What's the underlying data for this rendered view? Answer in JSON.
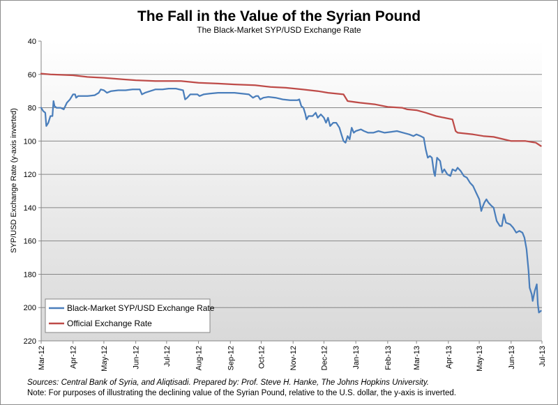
{
  "chart_data": {
    "type": "line",
    "title": "The Fall in the Value of the Syrian Pound",
    "subtitle": "The Black-Market SYP/USD Exchange Rate",
    "xlabel": "",
    "ylabel": "SYP/USD Exchange Rate (y-axis inverted)",
    "y_inverted": true,
    "ylim": [
      40,
      220
    ],
    "y_ticks": [
      40,
      60,
      80,
      100,
      120,
      140,
      160,
      180,
      200,
      220
    ],
    "x_range": [
      "2012-03-01",
      "2013-07-01"
    ],
    "x_tick_labels": [
      {
        "date": "2012-03-01",
        "label": "Mar-12"
      },
      {
        "date": "2012-04-01",
        "label": "Apr-12"
      },
      {
        "date": "2012-05-01",
        "label": "May-12"
      },
      {
        "date": "2012-06-01",
        "label": "Jun-12"
      },
      {
        "date": "2012-07-01",
        "label": "Jul-12"
      },
      {
        "date": "2012-08-01",
        "label": "Aug-12"
      },
      {
        "date": "2012-09-01",
        "label": "Sep-12"
      },
      {
        "date": "2012-10-01",
        "label": "Oct-12"
      },
      {
        "date": "2012-11-01",
        "label": "Nov-12"
      },
      {
        "date": "2012-12-01",
        "label": "Dec-12"
      },
      {
        "date": "2013-01-01",
        "label": "Jan-13"
      },
      {
        "date": "2013-02-01",
        "label": "Feb-13"
      },
      {
        "date": "2013-03-01",
        "label": "Mar-13"
      },
      {
        "date": "2013-04-01",
        "label": "Apr-13"
      },
      {
        "date": "2013-05-01",
        "label": "May-13"
      },
      {
        "date": "2013-06-01",
        "label": "Jun-13"
      },
      {
        "date": "2013-07-01",
        "label": "Jul-13"
      }
    ],
    "grid": "horizontal",
    "legend_placement": "bottom-left",
    "series": [
      {
        "name": "Black-Market SYP/USD Exchange Rate",
        "color": "#4a7ebb",
        "points": [
          [
            "2012-03-01",
            80
          ],
          [
            "2012-03-03",
            82
          ],
          [
            "2012-03-05",
            83
          ],
          [
            "2012-03-06",
            91
          ],
          [
            "2012-03-08",
            89
          ],
          [
            "2012-03-10",
            85
          ],
          [
            "2012-03-12",
            85
          ],
          [
            "2012-03-13",
            76
          ],
          [
            "2012-03-14",
            79
          ],
          [
            "2012-03-16",
            80
          ],
          [
            "2012-03-20",
            80
          ],
          [
            "2012-03-23",
            81
          ],
          [
            "2012-03-26",
            77
          ],
          [
            "2012-03-29",
            75
          ],
          [
            "2012-04-01",
            72
          ],
          [
            "2012-04-03",
            72
          ],
          [
            "2012-04-04",
            74
          ],
          [
            "2012-04-06",
            73
          ],
          [
            "2012-04-10",
            73
          ],
          [
            "2012-04-15",
            73
          ],
          [
            "2012-04-22",
            72.5
          ],
          [
            "2012-04-26",
            71
          ],
          [
            "2012-04-28",
            69
          ],
          [
            "2012-05-01",
            69.5
          ],
          [
            "2012-05-04",
            71
          ],
          [
            "2012-05-08",
            70
          ],
          [
            "2012-05-15",
            69.5
          ],
          [
            "2012-05-22",
            69.5
          ],
          [
            "2012-05-29",
            69
          ],
          [
            "2012-06-05",
            69
          ],
          [
            "2012-06-07",
            72
          ],
          [
            "2012-06-10",
            71
          ],
          [
            "2012-06-15",
            70
          ],
          [
            "2012-06-20",
            69
          ],
          [
            "2012-06-27",
            69
          ],
          [
            "2012-07-03",
            68.5
          ],
          [
            "2012-07-10",
            68.5
          ],
          [
            "2012-07-17",
            69.5
          ],
          [
            "2012-07-19",
            75
          ],
          [
            "2012-07-21",
            74
          ],
          [
            "2012-07-24",
            72
          ],
          [
            "2012-07-31",
            72
          ],
          [
            "2012-08-02",
            73
          ],
          [
            "2012-08-06",
            72
          ],
          [
            "2012-08-12",
            71.5
          ],
          [
            "2012-08-20",
            71
          ],
          [
            "2012-08-28",
            71
          ],
          [
            "2012-09-05",
            71
          ],
          [
            "2012-09-12",
            71.5
          ],
          [
            "2012-09-19",
            72
          ],
          [
            "2012-09-23",
            74
          ],
          [
            "2012-09-26",
            73
          ],
          [
            "2012-09-28",
            73
          ],
          [
            "2012-09-30",
            75
          ],
          [
            "2012-10-03",
            74
          ],
          [
            "2012-10-08",
            73.5
          ],
          [
            "2012-10-15",
            74
          ],
          [
            "2012-10-22",
            75
          ],
          [
            "2012-10-29",
            75.5
          ],
          [
            "2012-11-05",
            75.5
          ],
          [
            "2012-11-07",
            75
          ],
          [
            "2012-11-09",
            79
          ],
          [
            "2012-11-11",
            80
          ],
          [
            "2012-11-13",
            84
          ],
          [
            "2012-11-14",
            87
          ],
          [
            "2012-11-16",
            85
          ],
          [
            "2012-11-20",
            85
          ],
          [
            "2012-11-23",
            83
          ],
          [
            "2012-11-25",
            86
          ],
          [
            "2012-11-28",
            84
          ],
          [
            "2012-12-01",
            86
          ],
          [
            "2012-12-03",
            89
          ],
          [
            "2012-12-05",
            86
          ],
          [
            "2012-12-07",
            91
          ],
          [
            "2012-12-10",
            89
          ],
          [
            "2012-12-13",
            89
          ],
          [
            "2012-12-16",
            92
          ],
          [
            "2012-12-18",
            96
          ],
          [
            "2012-12-20",
            100
          ],
          [
            "2012-12-22",
            101
          ],
          [
            "2012-12-24",
            97
          ],
          [
            "2012-12-26",
            99
          ],
          [
            "2012-12-28",
            92
          ],
          [
            "2012-12-30",
            95
          ],
          [
            "2013-01-01",
            94
          ],
          [
            "2013-01-06",
            93
          ],
          [
            "2013-01-09",
            94
          ],
          [
            "2013-01-13",
            95
          ],
          [
            "2013-01-18",
            95
          ],
          [
            "2013-01-23",
            94
          ],
          [
            "2013-01-29",
            95
          ],
          [
            "2013-02-04",
            94.5
          ],
          [
            "2013-02-10",
            94
          ],
          [
            "2013-02-16",
            95
          ],
          [
            "2013-02-22",
            96
          ],
          [
            "2013-02-26",
            97
          ],
          [
            "2013-03-01",
            96
          ],
          [
            "2013-03-05",
            97
          ],
          [
            "2013-03-08",
            98
          ],
          [
            "2013-03-10",
            105
          ],
          [
            "2013-03-12",
            110
          ],
          [
            "2013-03-14",
            109
          ],
          [
            "2013-03-16",
            110
          ],
          [
            "2013-03-18",
            119
          ],
          [
            "2013-03-19",
            121
          ],
          [
            "2013-03-21",
            110
          ],
          [
            "2013-03-24",
            112
          ],
          [
            "2013-03-26",
            119
          ],
          [
            "2013-03-28",
            117
          ],
          [
            "2013-03-31",
            120
          ],
          [
            "2013-04-03",
            121
          ],
          [
            "2013-04-05",
            117
          ],
          [
            "2013-04-08",
            118
          ],
          [
            "2013-04-10",
            116
          ],
          [
            "2013-04-13",
            118
          ],
          [
            "2013-04-16",
            121
          ],
          [
            "2013-04-19",
            122
          ],
          [
            "2013-04-22",
            125
          ],
          [
            "2013-04-25",
            127
          ],
          [
            "2013-04-28",
            131
          ],
          [
            "2013-05-01",
            135
          ],
          [
            "2013-05-03",
            142
          ],
          [
            "2013-05-04",
            140
          ],
          [
            "2013-05-06",
            137
          ],
          [
            "2013-05-08",
            135
          ],
          [
            "2013-05-10",
            137
          ],
          [
            "2013-05-13",
            139
          ],
          [
            "2013-05-15",
            140
          ],
          [
            "2013-05-18",
            148
          ],
          [
            "2013-05-21",
            151
          ],
          [
            "2013-05-23",
            151
          ],
          [
            "2013-05-25",
            144
          ],
          [
            "2013-05-27",
            149
          ],
          [
            "2013-05-31",
            150
          ],
          [
            "2013-06-03",
            152
          ],
          [
            "2013-06-06",
            155
          ],
          [
            "2013-06-09",
            154
          ],
          [
            "2013-06-12",
            155
          ],
          [
            "2013-06-14",
            158
          ],
          [
            "2013-06-16",
            165
          ],
          [
            "2013-06-18",
            178
          ],
          [
            "2013-06-19",
            188
          ],
          [
            "2013-06-21",
            192
          ],
          [
            "2013-06-22",
            196
          ],
          [
            "2013-06-24",
            190
          ],
          [
            "2013-06-26",
            186
          ],
          [
            "2013-06-27",
            198
          ],
          [
            "2013-06-28",
            203
          ],
          [
            "2013-06-30",
            202
          ]
        ]
      },
      {
        "name": "Official Exchange Rate",
        "color": "#be4b48",
        "points": [
          [
            "2012-03-01",
            59.5
          ],
          [
            "2012-03-10",
            60
          ],
          [
            "2012-04-01",
            60.5
          ],
          [
            "2012-04-15",
            61.5
          ],
          [
            "2012-05-01",
            62
          ],
          [
            "2012-05-20",
            63
          ],
          [
            "2012-06-01",
            63.5
          ],
          [
            "2012-06-20",
            64
          ],
          [
            "2012-07-15",
            64
          ],
          [
            "2012-08-01",
            65
          ],
          [
            "2012-08-20",
            65.5
          ],
          [
            "2012-09-05",
            66
          ],
          [
            "2012-09-25",
            66.5
          ],
          [
            "2012-10-10",
            67.5
          ],
          [
            "2012-10-25",
            68
          ],
          [
            "2012-11-10",
            69
          ],
          [
            "2012-11-25",
            70
          ],
          [
            "2012-12-05",
            71
          ],
          [
            "2012-12-20",
            72
          ],
          [
            "2012-12-24",
            76
          ],
          [
            "2013-01-05",
            77
          ],
          [
            "2013-01-20",
            78
          ],
          [
            "2013-02-01",
            79.5
          ],
          [
            "2013-02-15",
            80
          ],
          [
            "2013-02-20",
            81
          ],
          [
            "2013-03-01",
            81.5
          ],
          [
            "2013-03-10",
            83
          ],
          [
            "2013-03-20",
            85
          ],
          [
            "2013-03-28",
            86
          ],
          [
            "2013-04-05",
            87
          ],
          [
            "2013-04-08",
            94
          ],
          [
            "2013-04-10",
            95
          ],
          [
            "2013-04-25",
            96
          ],
          [
            "2013-05-05",
            97
          ],
          [
            "2013-05-15",
            97.5
          ],
          [
            "2013-05-25",
            99
          ],
          [
            "2013-06-01",
            100
          ],
          [
            "2013-06-15",
            100
          ],
          [
            "2013-06-25",
            101
          ],
          [
            "2013-06-30",
            103
          ]
        ]
      }
    ]
  },
  "notes": {
    "sources": "Sources: Central Bank of Syria, and Aliqtisadi.  Prepared by: Prof. Steve H. Hanke, The Johns Hopkins University.",
    "note": "Note: For purposes of illustrating the declining value of the  Syrian Pound, relative to the U.S. dollar, the y-axis is inverted."
  }
}
